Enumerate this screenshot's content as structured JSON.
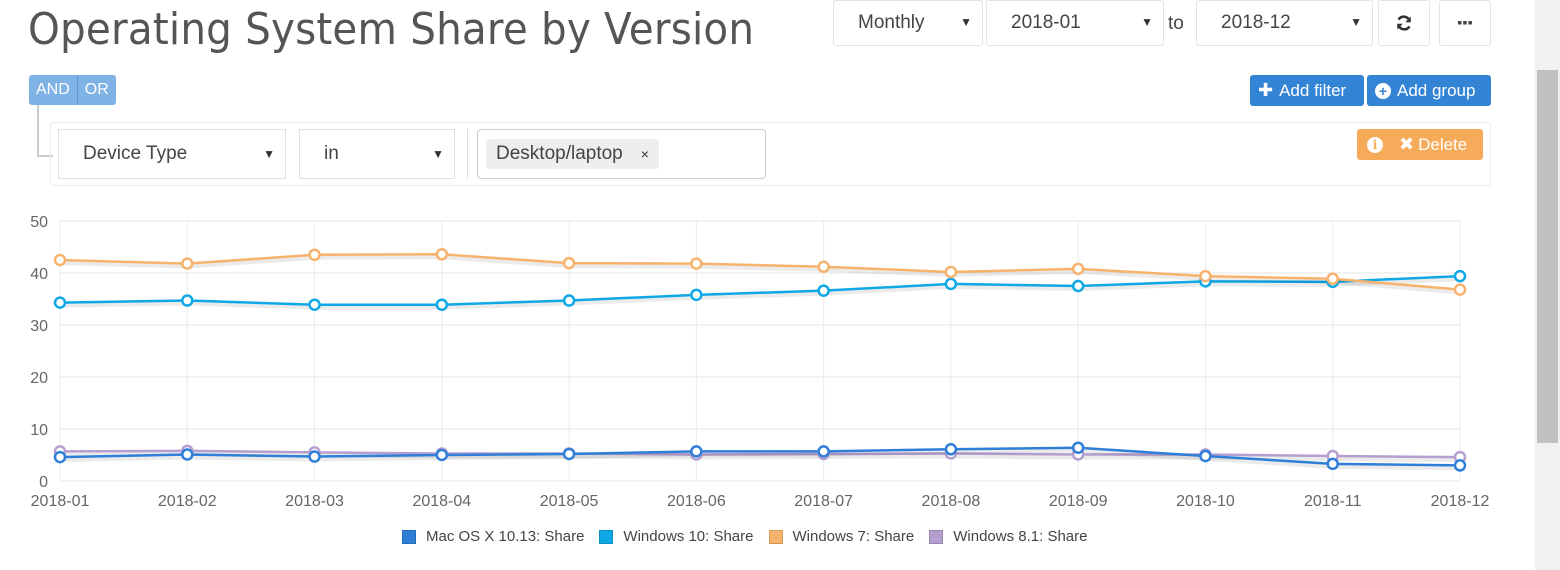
{
  "header": {
    "title": "Operating System Share by Version",
    "interval": "Monthly",
    "from": "2018-01",
    "to_label": "to",
    "to": "2018-12",
    "refresh_icon": "refresh-icon",
    "more_icon": "ellipsis-icon"
  },
  "query_builder": {
    "conjunctions": [
      "AND",
      "OR"
    ],
    "active_conjunction": "AND",
    "add_filter_label": "Add filter",
    "add_group_label": "Add group",
    "rule": {
      "field": "Device Type",
      "operator": "in",
      "values": [
        "Desktop/laptop"
      ],
      "remove_value_glyph": "×"
    },
    "delete_label": "Delete",
    "info_icon": "info-icon"
  },
  "chart_data": {
    "type": "line",
    "title": "Operating System Share by Version",
    "xlabel": "",
    "ylabel": "",
    "ylim": [
      0,
      50
    ],
    "yticks": [
      0,
      10,
      20,
      30,
      40,
      50
    ],
    "grid": true,
    "legend_position": "bottom",
    "categories": [
      "2018-01",
      "2018-02",
      "2018-03",
      "2018-04",
      "2018-05",
      "2018-06",
      "2018-07",
      "2018-08",
      "2018-09",
      "2018-10",
      "2018-11",
      "2018-12"
    ],
    "series": [
      {
        "name": "Mac OS X 10.13: Share",
        "color": "#2f7ed8",
        "values": [
          4.6,
          5.1,
          4.7,
          5.0,
          5.2,
          5.7,
          5.7,
          6.1,
          6.4,
          4.8,
          3.3,
          3.0
        ]
      },
      {
        "name": "Windows 10: Share",
        "color": "#0fa8e6",
        "values": [
          34.3,
          34.7,
          33.9,
          33.9,
          34.7,
          35.8,
          36.6,
          37.9,
          37.5,
          38.4,
          38.3,
          39.4
        ]
      },
      {
        "name": "Windows 7: Share",
        "color": "#f7b26e",
        "values": [
          42.5,
          41.8,
          43.5,
          43.6,
          41.9,
          41.8,
          41.2,
          40.2,
          40.8,
          39.4,
          38.9,
          36.8
        ]
      },
      {
        "name": "Windows 8.1: Share",
        "color": "#b59fd0",
        "values": [
          5.7,
          5.8,
          5.5,
          5.3,
          5.3,
          5.1,
          5.2,
          5.3,
          5.1,
          5.1,
          4.8,
          4.6
        ]
      }
    ]
  }
}
